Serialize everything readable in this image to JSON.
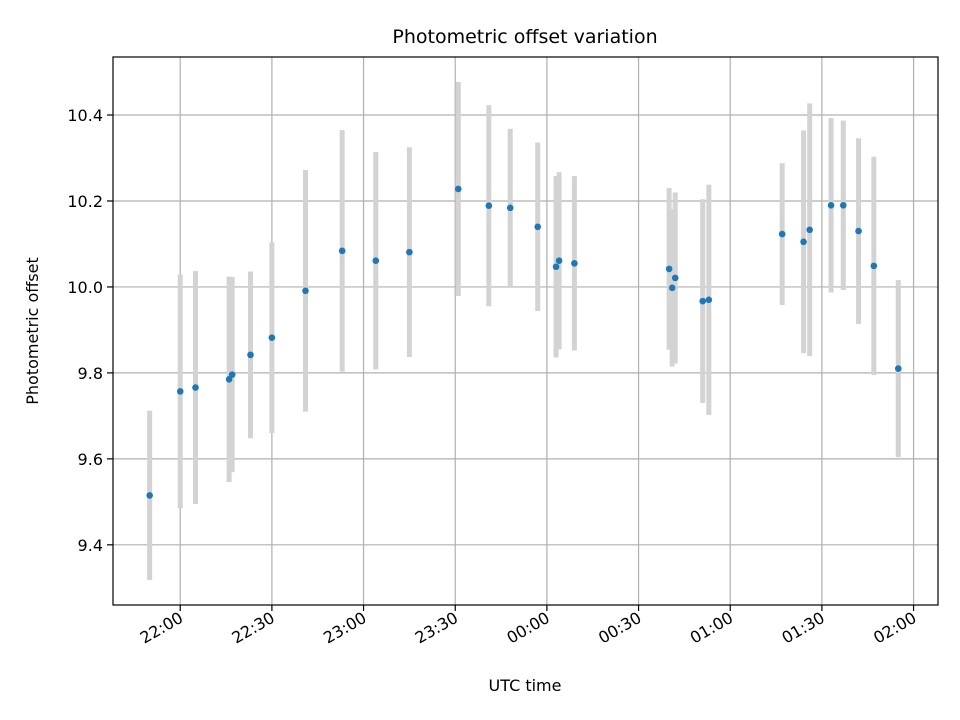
{
  "chart_data": {
    "type": "scatter",
    "title": "Photometric offset variation",
    "xlabel": "UTC time",
    "ylabel": "Photometric offset",
    "x_is_time_of_day": true,
    "xlim": [
      "21:38",
      "02:08"
    ],
    "ylim": [
      9.26,
      10.535
    ],
    "x_ticks": [
      "22:00",
      "22:30",
      "23:00",
      "23:30",
      "00:00",
      "00:30",
      "01:00",
      "01:30",
      "02:00"
    ],
    "y_ticks": [
      9.4,
      9.6,
      9.8,
      10.0,
      10.2,
      10.4
    ],
    "y_tick_labels": [
      "9.4",
      "9.6",
      "9.8",
      "10.0",
      "10.2",
      "10.4"
    ],
    "grid": true,
    "colors": {
      "point": "#1f77b4",
      "errorbar": "#d3d3d3",
      "grid": "#b0b0b0"
    },
    "points": [
      {
        "x": "21:50",
        "y": 9.515,
        "yerr": 0.197
      },
      {
        "x": "22:00",
        "y": 9.757,
        "yerr": 0.272
      },
      {
        "x": "22:05",
        "y": 9.766,
        "yerr": 0.271
      },
      {
        "x": "22:16",
        "y": 9.785,
        "yerr": 0.239
      },
      {
        "x": "22:17",
        "y": 9.796,
        "yerr": 0.227
      },
      {
        "x": "22:23",
        "y": 9.842,
        "yerr": 0.194
      },
      {
        "x": "22:30",
        "y": 9.882,
        "yerr": 0.222
      },
      {
        "x": "22:41",
        "y": 9.991,
        "yerr": 0.281
      },
      {
        "x": "22:53",
        "y": 10.084,
        "yerr": 0.281
      },
      {
        "x": "23:04",
        "y": 10.061,
        "yerr": 0.253
      },
      {
        "x": "23:15",
        "y": 10.081,
        "yerr": 0.244
      },
      {
        "x": "23:31",
        "y": 10.228,
        "yerr": 0.249
      },
      {
        "x": "23:41",
        "y": 10.189,
        "yerr": 0.234
      },
      {
        "x": "23:48",
        "y": 10.184,
        "yerr": 0.184
      },
      {
        "x": "23:57",
        "y": 10.14,
        "yerr": 0.196
      },
      {
        "x": "00:03",
        "y": 10.047,
        "yerr": 0.211
      },
      {
        "x": "00:04",
        "y": 10.061,
        "yerr": 0.206
      },
      {
        "x": "00:09",
        "y": 10.055,
        "yerr": 0.203
      },
      {
        "x": "00:40",
        "y": 10.042,
        "yerr": 0.188
      },
      {
        "x": "00:41",
        "y": 9.998,
        "yerr": 0.183
      },
      {
        "x": "00:42",
        "y": 10.021,
        "yerr": 0.199
      },
      {
        "x": "00:51",
        "y": 9.967,
        "yerr": 0.237
      },
      {
        "x": "00:53",
        "y": 9.97,
        "yerr": 0.268
      },
      {
        "x": "01:17",
        "y": 10.123,
        "yerr": 0.165
      },
      {
        "x": "01:24",
        "y": 10.105,
        "yerr": 0.259
      },
      {
        "x": "01:26",
        "y": 10.133,
        "yerr": 0.294
      },
      {
        "x": "01:33",
        "y": 10.19,
        "yerr": 0.203
      },
      {
        "x": "01:37",
        "y": 10.19,
        "yerr": 0.197
      },
      {
        "x": "01:42",
        "y": 10.13,
        "yerr": 0.216
      },
      {
        "x": "01:47",
        "y": 10.049,
        "yerr": 0.254
      },
      {
        "x": "01:55",
        "y": 9.81,
        "yerr": 0.206
      }
    ]
  }
}
